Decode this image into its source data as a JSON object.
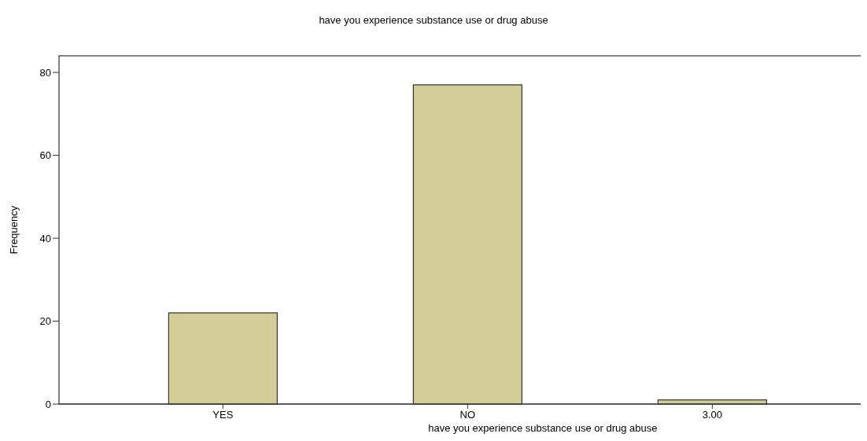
{
  "chart_data": {
    "type": "bar",
    "title": "have you experience substance use or drug abuse",
    "xlabel": "have you experience substance use or drug abuse",
    "ylabel": "Frequency",
    "categories": [
      "YES",
      "NO",
      "3.00"
    ],
    "values": [
      22,
      77,
      1
    ],
    "color": "#d3ce98",
    "ylim": [
      0,
      84
    ],
    "yticks": [
      0,
      20,
      40,
      60,
      80
    ],
    "grid": false
  }
}
